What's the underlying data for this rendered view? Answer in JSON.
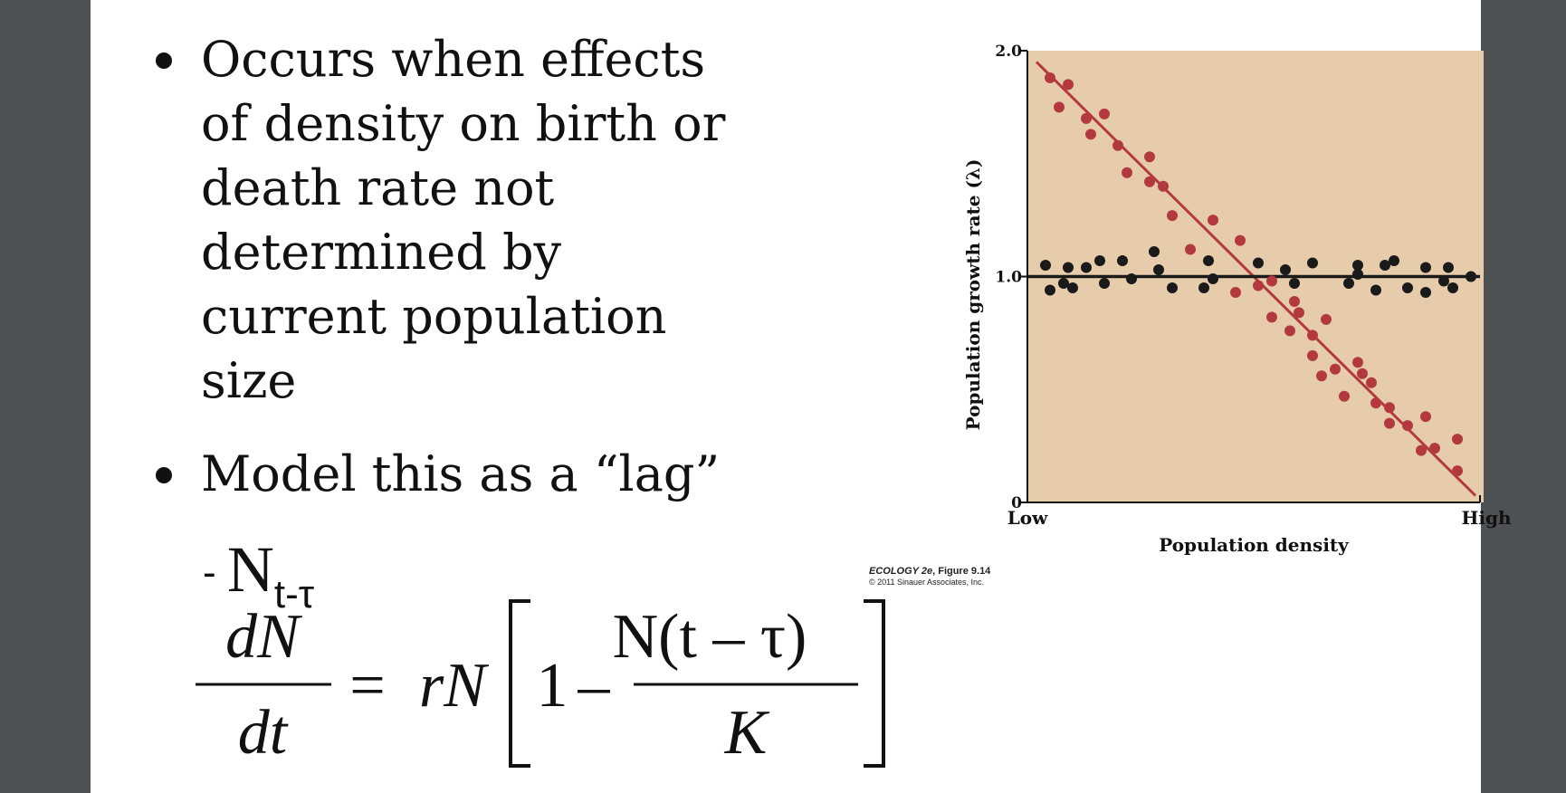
{
  "slide": {
    "bullets": [
      "Occurs when effects of density on birth or death rate not determined by current population size",
      "Model this as a “lag”"
    ],
    "lag_term": {
      "dash": "- ",
      "symbol": "N",
      "subscript": "t-τ"
    },
    "equation": {
      "lhs_num": "dN",
      "lhs_den": "dt",
      "equals": "=",
      "rN": "rN",
      "one": "1",
      "minus": "–",
      "frac_num": "N(t – τ)",
      "frac_den": "K"
    }
  },
  "credit": {
    "book": "ECOLOGY 2e",
    "figure": ", Figure 9.14",
    "copyright": "© 2011 Sinauer Associates, Inc."
  },
  "colors": {
    "plot_bg": "#e6ccaa",
    "red_series": "#b23a3e",
    "black_series": "#1a1a1a"
  },
  "chart_data": {
    "type": "scatter",
    "xlabel": "Population density",
    "ylabel": "Population growth rate (λ)",
    "x_tick_labels": [
      "Low",
      "High"
    ],
    "y_ticks": [
      0,
      1.0,
      2.0
    ],
    "y_tick_labels": [
      "0",
      "1.0",
      "2.0"
    ],
    "xlim": [
      0,
      1
    ],
    "ylim": [
      0,
      2.0
    ],
    "grid": false,
    "series": [
      {
        "color": "#b23a3e",
        "trend_line": {
          "x": [
            0.02,
            0.99
          ],
          "y": [
            1.95,
            0.03
          ]
        },
        "points": [
          [
            0.05,
            1.88
          ],
          [
            0.09,
            1.85
          ],
          [
            0.07,
            1.75
          ],
          [
            0.13,
            1.7
          ],
          [
            0.17,
            1.72
          ],
          [
            0.14,
            1.63
          ],
          [
            0.2,
            1.58
          ],
          [
            0.22,
            1.46
          ],
          [
            0.27,
            1.53
          ],
          [
            0.27,
            1.42
          ],
          [
            0.3,
            1.4
          ],
          [
            0.32,
            1.27
          ],
          [
            0.36,
            1.12
          ],
          [
            0.41,
            1.25
          ],
          [
            0.47,
            1.16
          ],
          [
            0.46,
            0.93
          ],
          [
            0.51,
            0.96
          ],
          [
            0.54,
            0.98
          ],
          [
            0.54,
            0.82
          ],
          [
            0.58,
            0.76
          ],
          [
            0.59,
            0.89
          ],
          [
            0.6,
            0.84
          ],
          [
            0.63,
            0.74
          ],
          [
            0.66,
            0.81
          ],
          [
            0.63,
            0.65
          ],
          [
            0.65,
            0.56
          ],
          [
            0.68,
            0.59
          ],
          [
            0.73,
            0.62
          ],
          [
            0.74,
            0.57
          ],
          [
            0.7,
            0.47
          ],
          [
            0.76,
            0.53
          ],
          [
            0.8,
            0.42
          ],
          [
            0.77,
            0.44
          ],
          [
            0.8,
            0.35
          ],
          [
            0.84,
            0.34
          ],
          [
            0.87,
            0.23
          ],
          [
            0.88,
            0.38
          ],
          [
            0.9,
            0.24
          ],
          [
            0.95,
            0.28
          ],
          [
            0.95,
            0.14
          ]
        ]
      },
      {
        "color": "#1a1a1a",
        "trend_line": {
          "x": [
            0.0,
            1.0
          ],
          "y": [
            1.0,
            1.0
          ]
        },
        "points": [
          [
            0.04,
            1.05
          ],
          [
            0.05,
            0.94
          ],
          [
            0.08,
            0.97
          ],
          [
            0.09,
            1.04
          ],
          [
            0.1,
            0.95
          ],
          [
            0.13,
            1.04
          ],
          [
            0.16,
            1.07
          ],
          [
            0.17,
            0.97
          ],
          [
            0.21,
            1.07
          ],
          [
            0.23,
            0.99
          ],
          [
            0.28,
            1.11
          ],
          [
            0.29,
            1.03
          ],
          [
            0.32,
            0.95
          ],
          [
            0.39,
            0.95
          ],
          [
            0.4,
            1.07
          ],
          [
            0.41,
            0.99
          ],
          [
            0.51,
            1.06
          ],
          [
            0.57,
            1.03
          ],
          [
            0.59,
            0.97
          ],
          [
            0.63,
            1.06
          ],
          [
            0.71,
            0.97
          ],
          [
            0.73,
            1.05
          ],
          [
            0.73,
            1.01
          ],
          [
            0.77,
            0.94
          ],
          [
            0.79,
            1.05
          ],
          [
            0.81,
            1.07
          ],
          [
            0.84,
            0.95
          ],
          [
            0.88,
            1.04
          ],
          [
            0.88,
            0.93
          ],
          [
            0.92,
            0.98
          ],
          [
            0.93,
            1.04
          ],
          [
            0.94,
            0.95
          ],
          [
            0.98,
            1.0
          ]
        ]
      }
    ]
  }
}
